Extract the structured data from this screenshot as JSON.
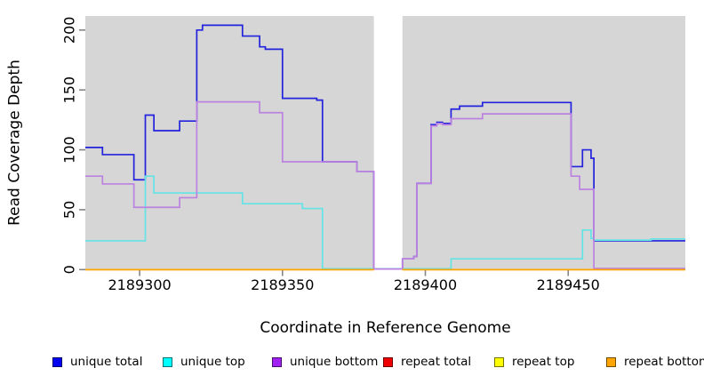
{
  "figure": {
    "plot_background": "#D6D6D6",
    "masked_band_color": "#FFFFFF",
    "tick_color": "#858585",
    "text_color": "#000000"
  },
  "legend": {
    "items": [
      {
        "label": "unique total",
        "color": "#0000EE"
      },
      {
        "label": "unique top",
        "color": "#00FFFF"
      },
      {
        "label": "unique bottom",
        "color": "#A020F0"
      },
      {
        "label": "repeat total",
        "color": "#EE0000"
      },
      {
        "label": "repeat top",
        "color": "#FFFF00"
      },
      {
        "label": "repeat bottom",
        "color": "#FFA500"
      }
    ]
  },
  "chart_data": {
    "type": "line",
    "subtype": "step-coverage-plot",
    "xlabel": "Coordinate in Reference Genome",
    "ylabel": "Read Coverage Depth",
    "xlim": [
      2189281,
      2189491
    ],
    "ylim": [
      0,
      212
    ],
    "x_ticks": [
      2189300,
      2189350,
      2189400,
      2189450
    ],
    "y_ticks": [
      0,
      50,
      100,
      150,
      200
    ],
    "grid": "off",
    "legend_position": "bottom",
    "masked_region": [
      2189382,
      2189392
    ],
    "series": [
      {
        "name": "unique total",
        "color": "#2322DC",
        "segments": [
          {
            "steps": [
              [
                2189281,
                102
              ],
              [
                2189287,
                96
              ],
              [
                2189298,
                75
              ],
              [
                2189302,
                129
              ],
              [
                2189305,
                116
              ],
              [
                2189314,
                124
              ],
              [
                2189320,
                200
              ],
              [
                2189322,
                204
              ],
              [
                2189336,
                195
              ],
              [
                2189342,
                186
              ],
              [
                2189344,
                184
              ],
              [
                2189350,
                143
              ],
              [
                2189362,
                141.5
              ],
              [
                2189364,
                90
              ],
              [
                2189376,
                82
              ],
              [
                2189382,
                0.5
              ],
              [
                2189392,
                9
              ],
              [
                2189396,
                11
              ],
              [
                2189397,
                72
              ],
              [
                2189402,
                121
              ],
              [
                2189404,
                123
              ],
              [
                2189406,
                122
              ],
              [
                2189409,
                134
              ],
              [
                2189412,
                136.5
              ],
              [
                2189420,
                139.5
              ],
              [
                2189451,
                86
              ],
              [
                2189455,
                100
              ],
              [
                2189458,
                93
              ],
              [
                2189459,
                24
              ]
            ],
            "x_end": 2189491
          }
        ]
      },
      {
        "name": "unique top",
        "color": "#63E3E6",
        "segments": [
          {
            "steps": [
              [
                2189281,
                24
              ],
              [
                2189302,
                78
              ],
              [
                2189305,
                64
              ],
              [
                2189336,
                55
              ],
              [
                2189357,
                51
              ],
              [
                2189364,
                0.7
              ],
              [
                2189409,
                9
              ],
              [
                2189455,
                33
              ],
              [
                2189458,
                26
              ],
              [
                2189459,
                24.6
              ],
              [
                2189479,
                25.6
              ]
            ],
            "x_end": 2189491
          }
        ]
      },
      {
        "name": "unique bottom",
        "color": "#BC82E0",
        "segments": [
          {
            "steps": [
              [
                2189281,
                78
              ],
              [
                2189287,
                71.5
              ],
              [
                2189298,
                52
              ],
              [
                2189314,
                60
              ],
              [
                2189320,
                140
              ],
              [
                2189342,
                131
              ],
              [
                2189350,
                90
              ],
              [
                2189376,
                82
              ],
              [
                2189382,
                0.5
              ],
              [
                2189392,
                9
              ],
              [
                2189396,
                11
              ],
              [
                2189397,
                72
              ],
              [
                2189402,
                120
              ],
              [
                2189404,
                122
              ],
              [
                2189406,
                121
              ],
              [
                2189409,
                126
              ],
              [
                2189420,
                130
              ],
              [
                2189451,
                78
              ],
              [
                2189454,
                67
              ],
              [
                2189459,
                1
              ]
            ],
            "x_end": 2189491
          }
        ]
      },
      {
        "name": "repeat total",
        "color": "#EE0000",
        "segments": [
          {
            "steps": [
              [
                2189281,
                0
              ]
            ],
            "x_end": 2189382
          },
          {
            "steps": [
              [
                2189392,
                0
              ]
            ],
            "x_end": 2189491
          }
        ]
      },
      {
        "name": "repeat top",
        "color": "#FFFF00",
        "segments": [
          {
            "steps": [
              [
                2189281,
                0
              ]
            ],
            "x_end": 2189382
          },
          {
            "steps": [
              [
                2189392,
                0
              ]
            ],
            "x_end": 2189491
          }
        ]
      },
      {
        "name": "repeat bottom",
        "color": "#FFA500",
        "segments": [
          {
            "steps": [
              [
                2189281,
                0
              ]
            ],
            "x_end": 2189382
          },
          {
            "steps": [
              [
                2189392,
                0
              ]
            ],
            "x_end": 2189491
          }
        ]
      }
    ]
  }
}
